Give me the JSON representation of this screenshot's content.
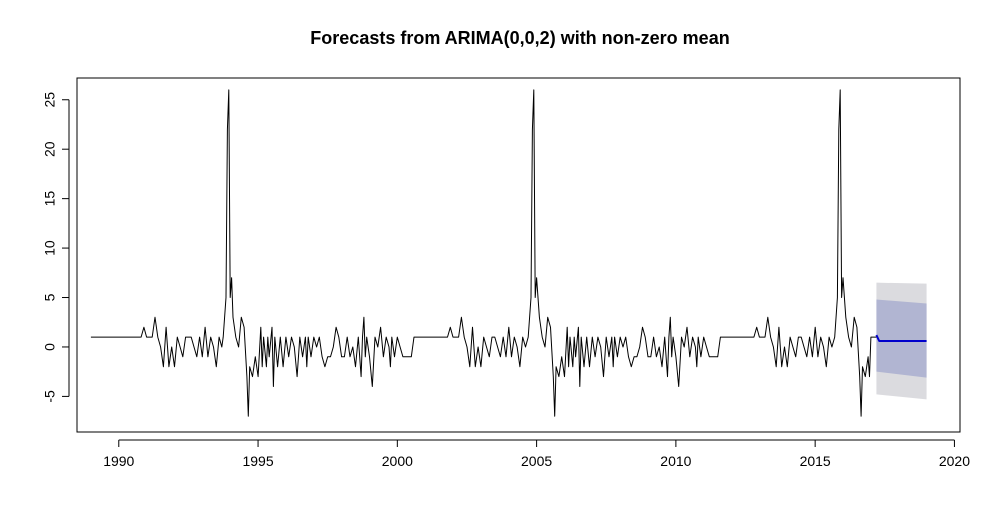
{
  "chart_data": {
    "type": "line",
    "title": "Forecasts from ARIMA(0,0,2) with non-zero mean",
    "xlabel": "",
    "ylabel": "",
    "xlim": [
      1988.5,
      2020.2
    ],
    "ylim": [
      -8.6,
      27.2
    ],
    "x_ticks": [
      1990,
      1995,
      2000,
      2005,
      2010,
      2015,
      2020
    ],
    "y_ticks": [
      -5,
      0,
      5,
      10,
      15,
      20,
      25
    ],
    "grid": false,
    "series": [
      {
        "color": "#000000",
        "points": [
          [
            1989.0,
            1
          ],
          [
            1990.8,
            1
          ],
          [
            1990.9,
            2
          ],
          [
            1991.0,
            1
          ],
          [
            1991.2,
            1
          ],
          [
            1991.3,
            3
          ],
          [
            1991.4,
            1
          ],
          [
            1991.5,
            0
          ],
          [
            1991.6,
            -2
          ],
          [
            1991.7,
            2
          ],
          [
            1991.8,
            -2
          ],
          [
            1991.9,
            0
          ],
          [
            1992.0,
            -2
          ],
          [
            1992.1,
            1
          ],
          [
            1992.2,
            0
          ],
          [
            1992.3,
            -1
          ],
          [
            1992.4,
            1
          ],
          [
            1992.6,
            1
          ],
          [
            1992.7,
            0
          ],
          [
            1992.8,
            -1
          ],
          [
            1992.9,
            1
          ],
          [
            1993.0,
            -1
          ],
          [
            1993.1,
            2
          ],
          [
            1993.2,
            -1
          ],
          [
            1993.3,
            1
          ],
          [
            1993.4,
            0
          ],
          [
            1993.5,
            -2
          ],
          [
            1993.6,
            1
          ],
          [
            1993.7,
            0
          ],
          [
            1993.75,
            1
          ],
          [
            1993.85,
            5
          ],
          [
            1993.9,
            22
          ],
          [
            1993.95,
            26
          ],
          [
            1994.0,
            5
          ],
          [
            1994.05,
            7
          ],
          [
            1994.1,
            3
          ],
          [
            1994.2,
            1
          ],
          [
            1994.3,
            0
          ],
          [
            1994.4,
            3
          ],
          [
            1994.5,
            2
          ],
          [
            1994.6,
            -3
          ],
          [
            1994.65,
            -7
          ],
          [
            1994.7,
            -2
          ],
          [
            1994.8,
            -3
          ],
          [
            1994.9,
            -1
          ],
          [
            1995.0,
            -3
          ],
          [
            1995.1,
            2
          ],
          [
            1995.15,
            -2
          ],
          [
            1995.2,
            1
          ],
          [
            1995.3,
            -2
          ],
          [
            1995.35,
            1
          ],
          [
            1995.4,
            -1
          ],
          [
            1995.5,
            2
          ],
          [
            1995.55,
            -4
          ],
          [
            1995.6,
            1
          ],
          [
            1995.7,
            -2
          ],
          [
            1995.8,
            1
          ],
          [
            1995.9,
            -2
          ],
          [
            1996.0,
            1
          ],
          [
            1996.1,
            -1
          ],
          [
            1996.2,
            1
          ],
          [
            1996.3,
            0
          ],
          [
            1996.4,
            -3
          ],
          [
            1996.5,
            1
          ],
          [
            1996.6,
            -1
          ],
          [
            1996.7,
            1
          ],
          [
            1996.75,
            -2
          ],
          [
            1996.8,
            1
          ],
          [
            1996.9,
            -1
          ],
          [
            1997.0,
            1
          ],
          [
            1997.1,
            0
          ],
          [
            1997.2,
            1
          ],
          [
            1997.3,
            -1
          ],
          [
            1997.4,
            -2
          ],
          [
            1997.5,
            -1
          ],
          [
            1997.6,
            -1
          ],
          [
            1997.7,
            0
          ],
          [
            1997.8,
            2
          ],
          [
            1997.9,
            1
          ],
          [
            1998.0,
            -1
          ],
          [
            1998.1,
            -1
          ],
          [
            1998.2,
            1
          ],
          [
            1998.3,
            -1
          ],
          [
            1998.4,
            0
          ],
          [
            1998.5,
            -2
          ],
          [
            1998.6,
            1
          ],
          [
            1998.7,
            -3
          ],
          [
            1998.75,
            1
          ],
          [
            1998.8,
            3
          ],
          [
            1998.85,
            -1
          ],
          [
            1998.9,
            1
          ],
          [
            1999.0,
            -1
          ],
          [
            1999.1,
            -4
          ],
          [
            1999.2,
            1
          ],
          [
            1999.3,
            0
          ],
          [
            1999.4,
            2
          ],
          [
            1999.5,
            -1
          ],
          [
            1999.6,
            1
          ],
          [
            1999.7,
            0
          ],
          [
            1999.75,
            -2
          ],
          [
            1999.8,
            1
          ],
          [
            1999.9,
            -1
          ],
          [
            2000.0,
            1
          ],
          [
            2000.1,
            0
          ],
          [
            2000.2,
            -1
          ],
          [
            2000.5,
            -1
          ],
          [
            2000.6,
            1
          ],
          [
            2001.8,
            1
          ],
          [
            2001.9,
            2
          ],
          [
            2002.0,
            1
          ],
          [
            2002.2,
            1
          ],
          [
            2002.3,
            3
          ],
          [
            2002.4,
            1
          ],
          [
            2002.5,
            0
          ],
          [
            2002.6,
            -2
          ],
          [
            2002.7,
            2
          ],
          [
            2002.8,
            -2
          ],
          [
            2002.9,
            0
          ],
          [
            2003.0,
            -2
          ],
          [
            2003.1,
            1
          ],
          [
            2003.2,
            0
          ],
          [
            2003.3,
            -1
          ],
          [
            2003.4,
            1
          ],
          [
            2003.5,
            1
          ],
          [
            2003.6,
            0
          ],
          [
            2003.7,
            -1
          ],
          [
            2003.8,
            1
          ],
          [
            2003.9,
            -1
          ],
          [
            2004.0,
            2
          ],
          [
            2004.1,
            -1
          ],
          [
            2004.2,
            1
          ],
          [
            2004.3,
            0
          ],
          [
            2004.4,
            -2
          ],
          [
            2004.5,
            1
          ],
          [
            2004.6,
            0
          ],
          [
            2004.7,
            1
          ],
          [
            2004.8,
            5
          ],
          [
            2004.85,
            22
          ],
          [
            2004.9,
            26
          ],
          [
            2004.95,
            5
          ],
          [
            2005.0,
            7
          ],
          [
            2005.1,
            3
          ],
          [
            2005.2,
            1
          ],
          [
            2005.3,
            0
          ],
          [
            2005.4,
            3
          ],
          [
            2005.5,
            2
          ],
          [
            2005.6,
            -3
          ],
          [
            2005.65,
            -7
          ],
          [
            2005.7,
            -2
          ],
          [
            2005.8,
            -3
          ],
          [
            2005.9,
            -1
          ],
          [
            2006.0,
            -3
          ],
          [
            2006.1,
            2
          ],
          [
            2006.15,
            -2
          ],
          [
            2006.2,
            1
          ],
          [
            2006.3,
            -2
          ],
          [
            2006.35,
            1
          ],
          [
            2006.4,
            -1
          ],
          [
            2006.5,
            2
          ],
          [
            2006.55,
            -4
          ],
          [
            2006.6,
            1
          ],
          [
            2006.7,
            -2
          ],
          [
            2006.8,
            1
          ],
          [
            2006.9,
            -2
          ],
          [
            2007.0,
            1
          ],
          [
            2007.1,
            -1
          ],
          [
            2007.2,
            1
          ],
          [
            2007.3,
            0
          ],
          [
            2007.4,
            -3
          ],
          [
            2007.5,
            1
          ],
          [
            2007.6,
            -1
          ],
          [
            2007.7,
            1
          ],
          [
            2007.75,
            -2
          ],
          [
            2007.8,
            1
          ],
          [
            2007.9,
            -1
          ],
          [
            2008.0,
            1
          ],
          [
            2008.1,
            0
          ],
          [
            2008.2,
            1
          ],
          [
            2008.3,
            -1
          ],
          [
            2008.4,
            -2
          ],
          [
            2008.5,
            -1
          ],
          [
            2008.6,
            -1
          ],
          [
            2008.7,
            0
          ],
          [
            2008.8,
            2
          ],
          [
            2008.9,
            1
          ],
          [
            2009.0,
            -1
          ],
          [
            2009.1,
            -1
          ],
          [
            2009.2,
            1
          ],
          [
            2009.3,
            -1
          ],
          [
            2009.4,
            0
          ],
          [
            2009.5,
            -2
          ],
          [
            2009.6,
            1
          ],
          [
            2009.7,
            -3
          ],
          [
            2009.75,
            1
          ],
          [
            2009.8,
            3
          ],
          [
            2009.85,
            -1
          ],
          [
            2009.9,
            1
          ],
          [
            2010.0,
            -1
          ],
          [
            2010.1,
            -4
          ],
          [
            2010.2,
            1
          ],
          [
            2010.3,
            0
          ],
          [
            2010.4,
            2
          ],
          [
            2010.5,
            -1
          ],
          [
            2010.6,
            1
          ],
          [
            2010.7,
            0
          ],
          [
            2010.75,
            -2
          ],
          [
            2010.8,
            1
          ],
          [
            2010.9,
            -1
          ],
          [
            2011.0,
            1
          ],
          [
            2011.1,
            0
          ],
          [
            2011.2,
            -1
          ],
          [
            2011.5,
            -1
          ],
          [
            2011.6,
            1
          ],
          [
            2012.8,
            1
          ],
          [
            2012.9,
            2
          ],
          [
            2013.0,
            1
          ],
          [
            2013.2,
            1
          ],
          [
            2013.3,
            3
          ],
          [
            2013.4,
            1
          ],
          [
            2013.5,
            0
          ],
          [
            2013.6,
            -2
          ],
          [
            2013.7,
            2
          ],
          [
            2013.8,
            -2
          ],
          [
            2013.9,
            0
          ],
          [
            2014.0,
            -2
          ],
          [
            2014.1,
            1
          ],
          [
            2014.2,
            0
          ],
          [
            2014.3,
            -1
          ],
          [
            2014.4,
            1
          ],
          [
            2014.5,
            1
          ],
          [
            2014.6,
            0
          ],
          [
            2014.7,
            -1
          ],
          [
            2014.8,
            1
          ],
          [
            2014.9,
            -1
          ],
          [
            2015.0,
            2
          ],
          [
            2015.1,
            -1
          ],
          [
            2015.2,
            1
          ],
          [
            2015.3,
            0
          ],
          [
            2015.4,
            -2
          ],
          [
            2015.5,
            1
          ],
          [
            2015.6,
            0
          ],
          [
            2015.7,
            1
          ],
          [
            2015.8,
            5
          ],
          [
            2015.85,
            22
          ],
          [
            2015.9,
            26
          ],
          [
            2015.95,
            5
          ],
          [
            2016.0,
            7
          ],
          [
            2016.1,
            3
          ],
          [
            2016.2,
            1
          ],
          [
            2016.3,
            0
          ],
          [
            2016.4,
            3
          ],
          [
            2016.5,
            2
          ],
          [
            2016.6,
            -3
          ],
          [
            2016.65,
            -7
          ],
          [
            2016.7,
            -2
          ],
          [
            2016.8,
            -3
          ],
          [
            2016.9,
            -1
          ],
          [
            2016.95,
            -3
          ],
          [
            2017.0,
            1
          ],
          [
            2017.2,
            1
          ]
        ]
      },
      {
        "color": "#0000cc",
        "points": [
          [
            2017.2,
            1.2
          ],
          [
            2017.3,
            0.6
          ],
          [
            2019.0,
            0.6
          ]
        ]
      }
    ],
    "intervals": [
      {
        "level": "95",
        "color": "#dbdbdf",
        "x": [
          2017.2,
          2019.0
        ],
        "lower": [
          -4.8,
          -5.3
        ],
        "upper": [
          6.5,
          6.4
        ]
      },
      {
        "level": "80",
        "color": "#b1b5d2",
        "x": [
          2017.2,
          2019.0
        ],
        "lower": [
          -2.5,
          -3.1
        ],
        "upper": [
          4.8,
          4.4
        ]
      }
    ]
  }
}
